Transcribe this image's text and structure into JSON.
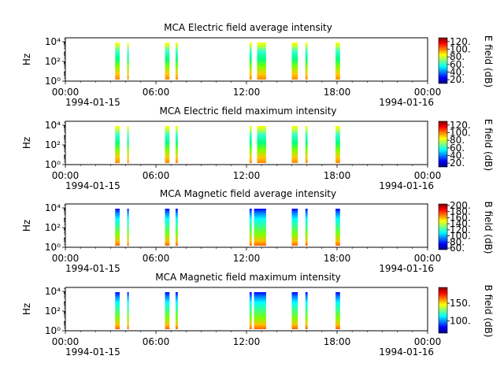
{
  "chart_data": [
    {
      "type": "heatmap",
      "title": "MCA  Electric field average intensity",
      "ylabel": "Hz",
      "colorbar_label": "E field (dB)",
      "colorbar_ticks": [
        "20.",
        "40.",
        "60.",
        "80.",
        "100.",
        "120."
      ],
      "colorbar_range": [
        10,
        130
      ],
      "y_ticks": [
        "10⁰",
        "10²",
        "10⁴"
      ],
      "y_range_log10": [
        0,
        4.4
      ],
      "x_ticks": [
        "00:00",
        "06:00",
        "12:00",
        "18:00",
        "00:00"
      ],
      "x_date_start": "1994-01-15",
      "x_date_end": "1994-01-16",
      "x_range_hours": [
        0,
        24
      ],
      "bursts": [
        {
          "start": 3.3,
          "end": 3.6,
          "style": "E"
        },
        {
          "start": 4.1,
          "end": 4.2,
          "style": "E"
        },
        {
          "start": 6.6,
          "end": 6.9,
          "style": "E"
        },
        {
          "start": 7.3,
          "end": 7.45,
          "style": "E"
        },
        {
          "start": 12.2,
          "end": 12.35,
          "style": "E"
        },
        {
          "start": 12.7,
          "end": 13.3,
          "style": "E"
        },
        {
          "start": 15.0,
          "end": 15.4,
          "style": "E"
        },
        {
          "start": 15.9,
          "end": 16.05,
          "style": "E"
        },
        {
          "start": 17.9,
          "end": 18.2,
          "style": "E"
        }
      ]
    },
    {
      "type": "heatmap",
      "title": "MCA  Electric field maximum intensity",
      "ylabel": "Hz",
      "colorbar_label": "E field (dB)",
      "colorbar_ticks": [
        "20.",
        "40.",
        "60.",
        "80.",
        "100.",
        "120."
      ],
      "colorbar_range": [
        10,
        130
      ],
      "y_ticks": [
        "10⁰",
        "10²",
        "10⁴"
      ],
      "y_range_log10": [
        0,
        4.4
      ],
      "x_ticks": [
        "00:00",
        "06:00",
        "12:00",
        "18:00",
        "00:00"
      ],
      "x_date_start": "1994-01-15",
      "x_date_end": "1994-01-16",
      "x_range_hours": [
        0,
        24
      ],
      "bursts": [
        {
          "start": 3.3,
          "end": 3.6,
          "style": "E"
        },
        {
          "start": 4.1,
          "end": 4.2,
          "style": "E"
        },
        {
          "start": 6.6,
          "end": 6.9,
          "style": "E"
        },
        {
          "start": 7.3,
          "end": 7.45,
          "style": "E"
        },
        {
          "start": 12.2,
          "end": 12.35,
          "style": "E"
        },
        {
          "start": 12.7,
          "end": 13.3,
          "style": "E"
        },
        {
          "start": 15.0,
          "end": 15.4,
          "style": "E"
        },
        {
          "start": 15.9,
          "end": 16.05,
          "style": "E"
        },
        {
          "start": 17.9,
          "end": 18.2,
          "style": "E"
        }
      ]
    },
    {
      "type": "heatmap",
      "title": "MCA  Magnetic field average intensity",
      "ylabel": "Hz",
      "colorbar_label": "B field (dB)",
      "colorbar_ticks": [
        "60.",
        "80.",
        "100.",
        "120.",
        "140.",
        "160.",
        "180.",
        "200."
      ],
      "colorbar_range": [
        55,
        205
      ],
      "y_ticks": [
        "10⁰",
        "10²",
        "10⁴"
      ],
      "y_range_log10": [
        0,
        4.4
      ],
      "x_ticks": [
        "00:00",
        "06:00",
        "12:00",
        "18:00",
        "00:00"
      ],
      "x_date_start": "1994-01-15",
      "x_date_end": "1994-01-16",
      "x_range_hours": [
        0,
        24
      ],
      "bursts": [
        {
          "start": 3.3,
          "end": 3.6,
          "style": "B"
        },
        {
          "start": 4.1,
          "end": 4.2,
          "style": "B"
        },
        {
          "start": 6.6,
          "end": 6.9,
          "style": "B"
        },
        {
          "start": 7.3,
          "end": 7.45,
          "style": "B"
        },
        {
          "start": 12.2,
          "end": 12.35,
          "style": "B"
        },
        {
          "start": 12.5,
          "end": 13.3,
          "style": "B"
        },
        {
          "start": 15.0,
          "end": 15.4,
          "style": "B"
        },
        {
          "start": 15.9,
          "end": 16.05,
          "style": "B"
        },
        {
          "start": 17.9,
          "end": 18.2,
          "style": "B"
        }
      ]
    },
    {
      "type": "heatmap",
      "title": "MCA  Magnetic field maximum intensity",
      "ylabel": "Hz",
      "colorbar_label": "B field (dB)",
      "colorbar_ticks": [
        "100.",
        "150."
      ],
      "colorbar_range": [
        65,
        195
      ],
      "y_ticks": [
        "10⁰",
        "10²",
        "10⁴"
      ],
      "y_range_log10": [
        0,
        4.4
      ],
      "x_ticks": [
        "00:00",
        "06:00",
        "12:00",
        "18:00",
        "00:00"
      ],
      "x_date_start": "1994-01-15",
      "x_date_end": "1994-01-16",
      "x_range_hours": [
        0,
        24
      ],
      "bursts": [
        {
          "start": 3.3,
          "end": 3.6,
          "style": "B"
        },
        {
          "start": 4.1,
          "end": 4.2,
          "style": "B"
        },
        {
          "start": 6.6,
          "end": 6.9,
          "style": "B"
        },
        {
          "start": 7.3,
          "end": 7.45,
          "style": "B"
        },
        {
          "start": 12.2,
          "end": 12.35,
          "style": "B"
        },
        {
          "start": 12.5,
          "end": 13.3,
          "style": "B"
        },
        {
          "start": 15.0,
          "end": 15.4,
          "style": "B"
        },
        {
          "start": 15.9,
          "end": 16.05,
          "style": "B"
        },
        {
          "start": 17.9,
          "end": 18.2,
          "style": "B"
        }
      ]
    }
  ]
}
